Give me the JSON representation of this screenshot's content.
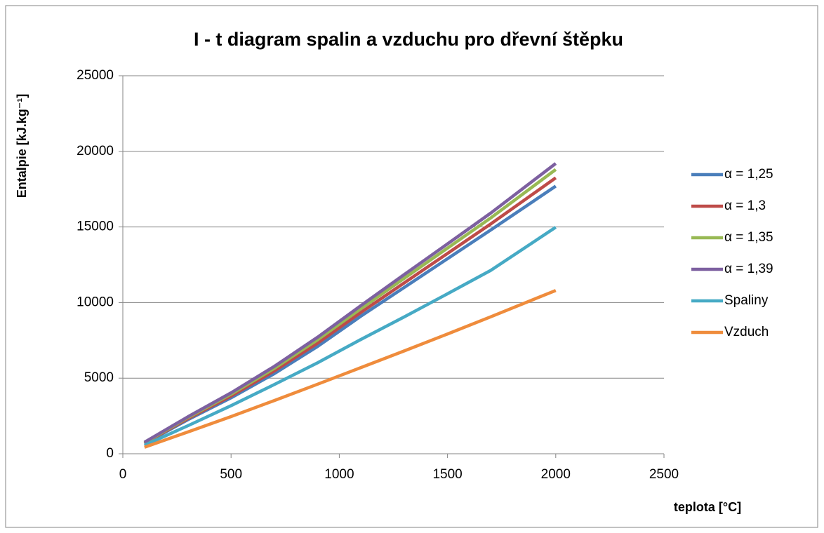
{
  "chart_data": {
    "type": "line",
    "title": "I - t diagram spalin a vzduchu pro dřevní štěpku",
    "x_label": "teplota [°C]",
    "y_label": "Entalpie [kJ.kg⁻¹]",
    "x": [
      100,
      300,
      500,
      700,
      900,
      1100,
      1300,
      1500,
      1700,
      2000
    ],
    "series": [
      {
        "name": "α = 1,25",
        "color": "#4a7ebb",
        "values": [
          670,
          2250,
          3700,
          5300,
          7100,
          9100,
          11000,
          12900,
          14800,
          17700
        ]
      },
      {
        "name": "α = 1,3",
        "color": "#be4b48",
        "values": [
          700,
          2320,
          3820,
          5480,
          7320,
          9350,
          11300,
          13250,
          15200,
          18250
        ]
      },
      {
        "name": "α = 1,35",
        "color": "#98b954",
        "values": [
          730,
          2390,
          3940,
          5650,
          7540,
          9600,
          11600,
          13600,
          15600,
          18800
        ]
      },
      {
        "name": "α = 1,39",
        "color": "#7d60a0",
        "values": [
          760,
          2440,
          4030,
          5780,
          7710,
          9800,
          11850,
          13880,
          15920,
          19200
        ]
      },
      {
        "name": "Spaliny",
        "color": "#46aac5",
        "values": [
          560,
          1850,
          3180,
          4580,
          6020,
          7560,
          9050,
          10580,
          12130,
          14980
        ]
      },
      {
        "name": "Vzduch",
        "color": "#ef8c3c",
        "values": [
          430,
          1440,
          2460,
          3520,
          4600,
          5700,
          6800,
          7920,
          9060,
          10800
        ]
      }
    ],
    "xlim": [
      0,
      2500
    ],
    "xticks": [
      0,
      500,
      1000,
      1500,
      2000,
      2500
    ],
    "ylim": [
      0,
      25000
    ],
    "yticks": [
      0,
      5000,
      10000,
      15000,
      20000,
      25000
    ],
    "grid": true,
    "legend": "right"
  }
}
